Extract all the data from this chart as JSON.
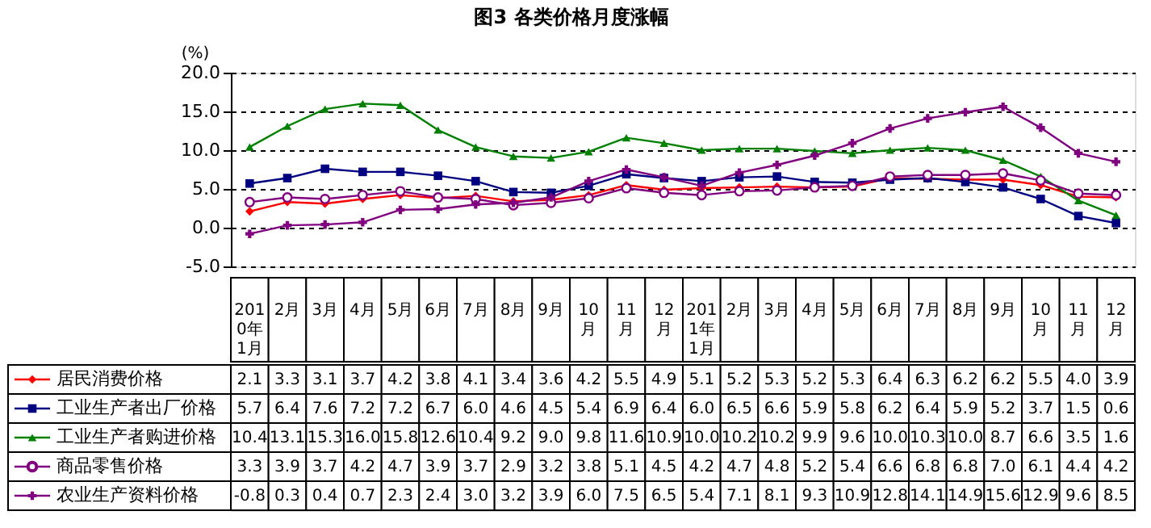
{
  "chart_data": {
    "type": "line",
    "title": "图3    各类价格月度涨幅",
    "ylabel": "(%)",
    "categories": [
      "2010年1月",
      "2月",
      "3月",
      "4月",
      "5月",
      "6月",
      "7月",
      "8月",
      "9月",
      "10月",
      "11月",
      "12月",
      "2011年1月",
      "2月",
      "3月",
      "4月",
      "5月",
      "6月",
      "7月",
      "8月",
      "9月",
      "10月",
      "11月",
      "12月"
    ],
    "series": [
      {
        "name": "居民消费价格",
        "color": "#ff0000",
        "marker": "diamond",
        "values": [
          2.1,
          3.3,
          3.1,
          3.7,
          4.2,
          3.8,
          4.1,
          3.4,
          3.6,
          4.2,
          5.5,
          4.9,
          5.1,
          5.2,
          5.3,
          5.2,
          5.3,
          6.4,
          6.3,
          6.2,
          6.2,
          5.5,
          4.0,
          3.9
        ],
        "value_labels": [
          "2.1",
          "3.3",
          "3.1",
          "3.7",
          "4.2",
          "3.8",
          "4.1",
          "3.4",
          "3.6",
          "4.2",
          "5.5",
          "4.9",
          "5.1",
          "5.2",
          "5.3",
          "5.2",
          "5.3",
          "6.4",
          "6.3",
          "6.2",
          "6.2",
          "5.5",
          "4.0",
          "3.9"
        ]
      },
      {
        "name": "工业生产者出厂价格",
        "color": "#000080",
        "marker": "square",
        "values": [
          5.7,
          6.4,
          7.6,
          7.2,
          7.2,
          6.7,
          6.0,
          4.6,
          4.5,
          5.4,
          6.9,
          6.4,
          6.0,
          6.5,
          6.6,
          5.9,
          5.8,
          6.2,
          6.4,
          5.9,
          5.2,
          3.7,
          1.5,
          0.6
        ],
        "value_labels": [
          "5.7",
          "6.4",
          "7.6",
          "7.2",
          "7.2",
          "6.7",
          "6.0",
          "4.6",
          "4.5",
          "5.4",
          "6.9",
          "6.4",
          "6.0",
          "6.5",
          "6.6",
          "5.9",
          "5.8",
          "6.2",
          "6.4",
          "5.9",
          "5.2",
          "3.7",
          "1.5",
          "0.6"
        ]
      },
      {
        "name": "工业生产者购进价格",
        "color": "#008000",
        "marker": "triangle",
        "values": [
          10.4,
          13.1,
          15.3,
          16.0,
          15.8,
          12.6,
          10.4,
          9.2,
          9.0,
          9.8,
          11.6,
          10.9,
          10.0,
          10.2,
          10.2,
          9.9,
          9.6,
          10.0,
          10.3,
          10.0,
          8.7,
          6.6,
          3.5,
          1.6
        ],
        "value_labels": [
          "10.4",
          "13.1",
          "15.3",
          "16.0",
          "15.8",
          "12.6",
          "10.4",
          "9.2",
          "9.0",
          "9.8",
          "11.6",
          "10.9",
          "10.0",
          "10.2",
          "10.2",
          "9.9",
          "9.6",
          "10.0",
          "10.3",
          "10.0",
          "8.7",
          "6.6",
          "3.5",
          "1.6"
        ]
      },
      {
        "name": "商品零售价格",
        "color": "#800080",
        "marker": "circle",
        "values": [
          3.3,
          3.9,
          3.7,
          4.2,
          4.7,
          3.9,
          3.7,
          2.9,
          3.2,
          3.8,
          5.1,
          4.5,
          4.2,
          4.7,
          4.8,
          5.2,
          5.4,
          6.6,
          6.8,
          6.8,
          7.0,
          6.1,
          4.4,
          4.2
        ],
        "value_labels": [
          "3.3",
          "3.9",
          "3.7",
          "4.2",
          "4.7",
          "3.9",
          "3.7",
          "2.9",
          "3.2",
          "3.8",
          "5.1",
          "4.5",
          "4.2",
          "4.7",
          "4.8",
          "5.2",
          "5.4",
          "6.6",
          "6.8",
          "6.8",
          "7.0",
          "6.1",
          "4.4",
          "4.2"
        ]
      },
      {
        "name": "农业生产资料价格",
        "color": "#800080",
        "marker": "cross",
        "values": [
          -0.8,
          0.3,
          0.4,
          0.7,
          2.3,
          2.4,
          3.0,
          3.2,
          3.9,
          6.0,
          7.5,
          6.5,
          5.4,
          7.1,
          8.1,
          9.3,
          10.9,
          12.8,
          14.1,
          14.9,
          15.6,
          12.9,
          9.6,
          8.5
        ],
        "value_labels": [
          "-0.8",
          "0.3",
          "0.4",
          "0.7",
          "2.3",
          "2.4",
          "3.0",
          "3.2",
          "3.9",
          "6.0",
          "7.5",
          "6.5",
          "5.4",
          "7.1",
          "8.1",
          "9.3",
          "10.9",
          "12.8",
          "14.1",
          "14.9",
          "15.6",
          "12.9",
          "9.6",
          "8.5"
        ]
      }
    ],
    "ylim": [
      -5,
      20
    ],
    "yticks": [
      {
        "value": -5,
        "label": "-5.0"
      },
      {
        "value": 0,
        "label": "0.0"
      },
      {
        "value": 5,
        "label": "5.0"
      },
      {
        "value": 10,
        "label": "10.0"
      },
      {
        "value": 15,
        "label": "15.0"
      },
      {
        "value": 20,
        "label": "20.0"
      }
    ],
    "grid": "y",
    "legend": "bottom left",
    "line_style": "solid"
  }
}
